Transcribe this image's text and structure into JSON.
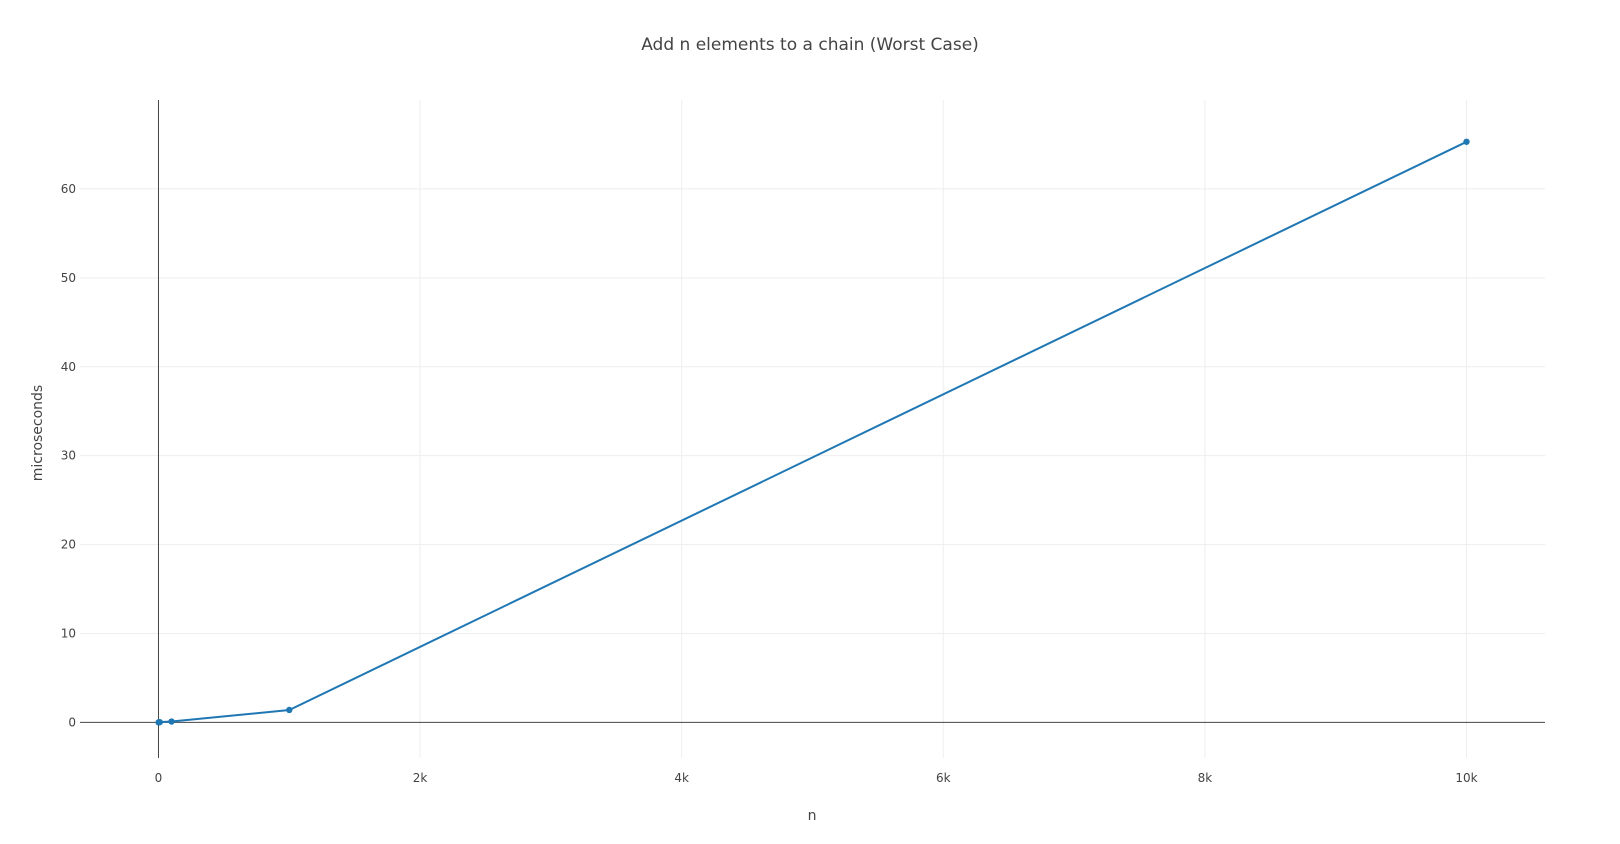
{
  "chart_data": {
    "type": "line",
    "title": "Add n elements to a chain (Worst Case)",
    "xlabel": "n",
    "ylabel": "microseconds",
    "xlim": [
      -600,
      10600
    ],
    "ylim": [
      -4,
      70
    ],
    "x_ticks": [
      0,
      2000,
      4000,
      6000,
      8000,
      10000
    ],
    "x_tick_labels": [
      "0",
      "2k",
      "4k",
      "6k",
      "8k",
      "10k"
    ],
    "y_ticks": [
      0,
      10,
      20,
      30,
      40,
      50,
      60
    ],
    "y_tick_labels": [
      "0",
      "10",
      "20",
      "30",
      "40",
      "50",
      "60"
    ],
    "grid": true,
    "series": [
      {
        "color": "#1f77b4",
        "x": [
          1,
          10,
          100,
          1000,
          10000
        ],
        "y": [
          0.01,
          0.03,
          0.1,
          1.4,
          65.3
        ]
      }
    ]
  }
}
